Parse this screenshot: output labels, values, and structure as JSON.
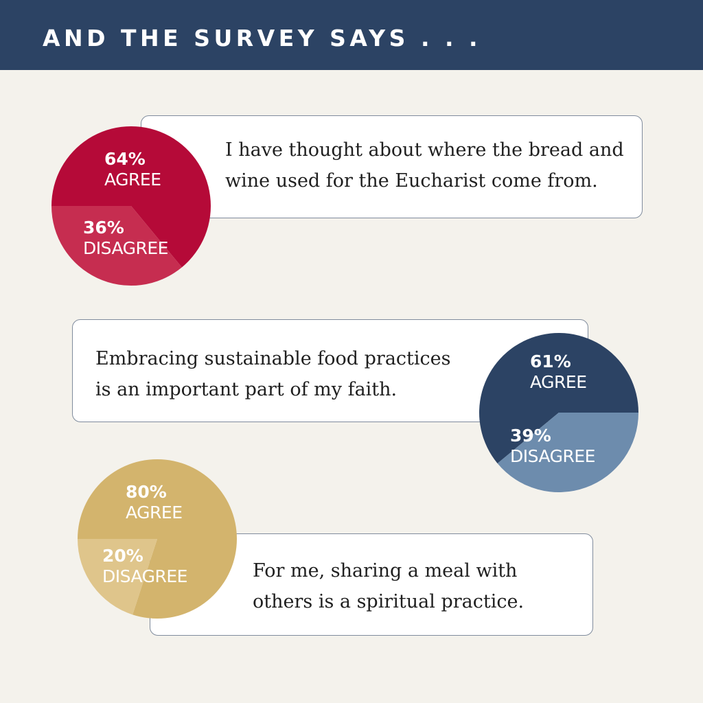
{
  "title": "AND THE SURVEY SAYS . . .",
  "colors": {
    "header_bg": "#2c4364",
    "page_bg": "#f4f2ec"
  },
  "chart_data": [
    {
      "type": "pie",
      "statement": [
        "I have thought about where the bread and",
        "wine used for the Eucharist come from."
      ],
      "categories": [
        "AGREE",
        "DISAGREE"
      ],
      "values": [
        64,
        36
      ],
      "value_labels": [
        "64%",
        "36%"
      ],
      "colors": [
        "#b50a38",
        "#c62d50"
      ]
    },
    {
      "type": "pie",
      "statement": [
        "Embracing sustainable food practices",
        "is an important part of my faith."
      ],
      "categories": [
        "AGREE",
        "DISAGREE"
      ],
      "values": [
        61,
        39
      ],
      "value_labels": [
        "61%",
        "39%"
      ],
      "colors": [
        "#2c4364",
        "#6d8cad"
      ]
    },
    {
      "type": "pie",
      "statement": [
        "For me, sharing a meal with",
        "others is a spiritual practice."
      ],
      "categories": [
        "AGREE",
        "DISAGREE"
      ],
      "values": [
        80,
        20
      ],
      "value_labels": [
        "80%",
        "20%"
      ],
      "colors": [
        "#d3b46d",
        "#dfc58b"
      ]
    }
  ]
}
